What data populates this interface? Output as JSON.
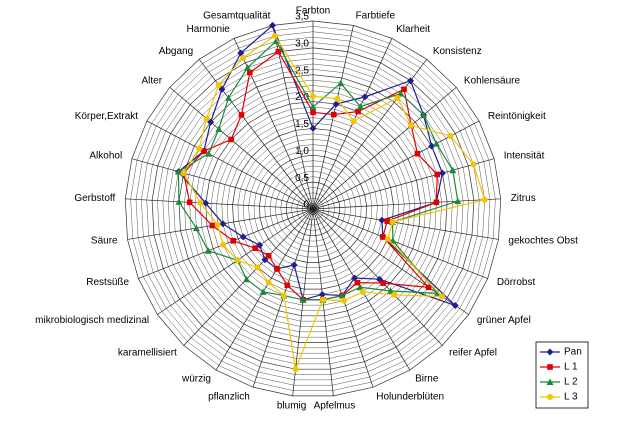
{
  "chart_data": {
    "type": "radar",
    "categories": [
      "Farbton",
      "Farbtiefe",
      "Klarheit",
      "Konsistenz",
      "Kohlensäure",
      "Reintönigkeit",
      "Intensität",
      "Zitrus",
      "gekochtes Obst",
      "Dörrobst",
      "grüner Apfel",
      "reifer Apfel",
      "Birne",
      "Holunderblüten",
      "Apfelmus",
      "blumig",
      "pflanzlich",
      "würzig",
      "karamellisiert",
      "mikrobiologisch medizinal",
      "Restsüße",
      "Säure",
      "Gerbstoff",
      "Alkohol",
      "Körper,Extrakt",
      "Alter",
      "Abgang",
      "Harmonie",
      "Gesamtqualität"
    ],
    "ylim": [
      0,
      3.5
    ],
    "yticks": [
      {
        "value": 0,
        "label": "0"
      },
      {
        "value": 0.5,
        "label": "0,5"
      },
      {
        "value": 1.0,
        "label": "1,0"
      },
      {
        "value": 1.5,
        "label": "1,5"
      },
      {
        "value": 2.0,
        "label": "2,0"
      },
      {
        "value": 2.5,
        "label": "2,5"
      },
      {
        "value": 3.0,
        "label": "3,0"
      },
      {
        "value": 3.5,
        "label": "3,5"
      }
    ],
    "grid": true,
    "legend": "lower right",
    "series": [
      {
        "name": "Pan",
        "color": "#1f1f8f",
        "marker": "diamond",
        "values": [
          1.5,
          2.0,
          2.3,
          3.0,
          2.7,
          2.5,
          2.5,
          2.3,
          1.3,
          1.4,
          3.2,
          1.8,
          1.5,
          1.7,
          1.6,
          1.7,
          1.1,
          1.3,
          1.3,
          1.2,
          1.4,
          1.7,
          2.0,
          2.6,
          2.3,
          2.5,
          2.8,
          3.2,
          3.5
        ]
      },
      {
        "name": "L 1",
        "color": "#e00000",
        "marker": "square",
        "values": [
          1.8,
          1.8,
          2.0,
          2.8,
          2.4,
          2.2,
          2.4,
          2.3,
          1.4,
          1.4,
          2.6,
          1.9,
          1.6,
          1.7,
          1.7,
          1.7,
          1.5,
          1.3,
          1.2,
          1.3,
          1.6,
          1.9,
          2.3,
          2.5,
          2.3,
          2.0,
          2.2,
          2.8,
          3.0
        ]
      },
      {
        "name": "L 2",
        "color": "#1a8a3a",
        "marker": "triangle",
        "values": [
          1.9,
          2.4,
          2.1,
          2.7,
          2.7,
          2.6,
          2.7,
          2.7,
          1.5,
          1.6,
          2.8,
          2.1,
          1.7,
          1.7,
          1.7,
          1.7,
          1.7,
          1.8,
          1.8,
          1.7,
          2.1,
          2.2,
          2.5,
          2.6,
          2.2,
          2.3,
          2.6,
          2.9,
          3.2
        ]
      },
      {
        "name": "L 3",
        "color": "#f5c400",
        "marker": "circle",
        "values": [
          2.1,
          2.1,
          1.8,
          2.6,
          2.4,
          2.9,
          3.1,
          3.2,
          1.5,
          1.5,
          2.9,
          2.2,
          1.8,
          1.8,
          1.7,
          3.0,
          1.7,
          1.6,
          1.5,
          1.7,
          1.8,
          1.8,
          2.1,
          2.5,
          2.4,
          2.6,
          2.9,
          3.1,
          3.3
        ]
      }
    ]
  }
}
